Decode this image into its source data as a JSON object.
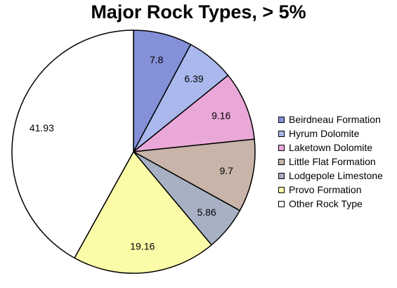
{
  "chart_data": {
    "type": "pie",
    "title": "Major Rock Types, > 5%",
    "slices": [
      {
        "name": "Beirdneau Formation",
        "value": 7.8,
        "label": "7.8",
        "color": "#8490d8"
      },
      {
        "name": "Hyrum Dolomite",
        "value": 6.39,
        "label": "6.39",
        "color": "#aab8ee"
      },
      {
        "name": "Laketown Dolomite",
        "value": 9.16,
        "label": "9.16",
        "color": "#eaa8d8"
      },
      {
        "name": "Little Flat Formation",
        "value": 9.7,
        "label": "9.7",
        "color": "#c8b4a8"
      },
      {
        "name": "Lodgepole Limestone",
        "value": 5.86,
        "label": "5.86",
        "color": "#a8b0c4"
      },
      {
        "name": "Provo Formation",
        "value": 19.16,
        "label": "19.16",
        "color": "#fcfca8"
      },
      {
        "name": "Other Rock Type",
        "value": 41.93,
        "label": "41.93",
        "color": "#ffffff"
      }
    ],
    "legend_position": "right"
  }
}
